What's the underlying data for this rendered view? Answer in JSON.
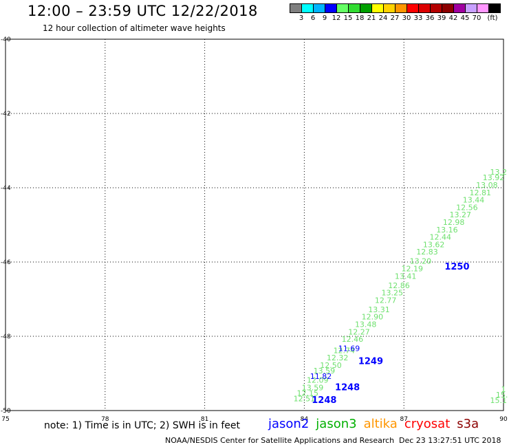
{
  "header": {
    "title": "12:00 – 23:59 UTC 12/22/2018",
    "subtitle": "12 hour collection of altimeter wave heights"
  },
  "color_scale": {
    "colors": [
      "#7f7f7f",
      "#00ffff",
      "#00b4ff",
      "#0000ff",
      "#64ff64",
      "#32dc32",
      "#00a000",
      "#ffff00",
      "#ffd200",
      "#ff9600",
      "#ff0000",
      "#dc0000",
      "#b40000",
      "#8c0000",
      "#a000a0",
      "#c8a0ff",
      "#ff96ff",
      "#000000"
    ],
    "labels": [
      "3",
      "6",
      "9",
      "12",
      "15",
      "18",
      "21",
      "24",
      "27",
      "30",
      "33",
      "36",
      "39",
      "42",
      "45",
      "70"
    ],
    "unit": "(ft)"
  },
  "note": "note: 1) Time is in UTC; 2) SWH is in feet",
  "legend": [
    {
      "name": "jason2",
      "color": "#0000ff"
    },
    {
      "name": "jason3",
      "color": "#00b000"
    },
    {
      "name": "altika",
      "color": "#ff9600"
    },
    {
      "name": "cryosat",
      "color": "#ff0000"
    },
    {
      "name": "s3a",
      "color": "#8c0000"
    }
  ],
  "footer": {
    "credit": "NOAA/NESDIS Center for Satellite Applications and Research",
    "timestamp": "Dec 23 13:27:51 UTC 2018"
  },
  "chart_data": {
    "type": "scatter",
    "x_ticks": [
      75,
      78,
      81,
      84,
      87,
      90
    ],
    "y_ticks": [
      -40,
      -42,
      -44,
      -46,
      -48,
      -50
    ],
    "xlim": [
      75,
      90
    ],
    "ylim": [
      -50,
      -40
    ],
    "grid": true,
    "series": [
      {
        "name": "jason3",
        "color": "#6ee06e",
        "labels": [
          {
            "x": 84.0,
            "y": -49.75,
            "text": "12.51"
          },
          {
            "x": 84.1,
            "y": -49.6,
            "text": "12.15"
          },
          {
            "x": 84.25,
            "y": -49.45,
            "text": "13.59"
          },
          {
            "x": 84.4,
            "y": -49.25,
            "text": "12.09"
          },
          {
            "x": 84.6,
            "y": -49.0,
            "text": "13.59"
          },
          {
            "x": 84.8,
            "y": -48.85,
            "text": "12.50"
          },
          {
            "x": 85.0,
            "y": -48.65,
            "text": "12.32"
          },
          {
            "x": 85.2,
            "y": -48.45,
            "text": "12.74"
          },
          {
            "x": 85.45,
            "y": -48.15,
            "text": "12.46"
          },
          {
            "x": 85.65,
            "y": -47.95,
            "text": "12.27"
          },
          {
            "x": 85.85,
            "y": -47.75,
            "text": "13.48"
          },
          {
            "x": 86.05,
            "y": -47.55,
            "text": "12.90"
          },
          {
            "x": 86.25,
            "y": -47.35,
            "text": "13.31"
          },
          {
            "x": 86.45,
            "y": -47.1,
            "text": "12.77"
          },
          {
            "x": 86.65,
            "y": -46.9,
            "text": "13.25"
          },
          {
            "x": 86.85,
            "y": -46.7,
            "text": "12.86"
          },
          {
            "x": 87.05,
            "y": -46.45,
            "text": "13.41"
          },
          {
            "x": 87.25,
            "y": -46.25,
            "text": "12.19"
          },
          {
            "x": 87.5,
            "y": -46.05,
            "text": "13.20"
          },
          {
            "x": 87.7,
            "y": -45.8,
            "text": "12.83"
          },
          {
            "x": 87.9,
            "y": -45.6,
            "text": "13.62"
          },
          {
            "x": 88.1,
            "y": -45.4,
            "text": "12.44"
          },
          {
            "x": 88.3,
            "y": -45.2,
            "text": "13.16"
          },
          {
            "x": 88.5,
            "y": -45.0,
            "text": "12.98"
          },
          {
            "x": 88.7,
            "y": -44.8,
            "text": "13.27"
          },
          {
            "x": 88.9,
            "y": -44.6,
            "text": "12.56"
          },
          {
            "x": 89.1,
            "y": -44.4,
            "text": "13.44"
          },
          {
            "x": 89.3,
            "y": -44.2,
            "text": "12.81"
          },
          {
            "x": 89.5,
            "y": -44.0,
            "text": "13.08"
          },
          {
            "x": 89.7,
            "y": -43.8,
            "text": "13.92"
          },
          {
            "x": 89.85,
            "y": -43.65,
            "text": "13.2"
          },
          {
            "x": 89.85,
            "y": -49.8,
            "text": "15.1"
          },
          {
            "x": 89.95,
            "y": -49.65,
            "text": "15."
          },
          {
            "x": 90.0,
            "y": -49.5,
            "text": "1"
          }
        ]
      },
      {
        "name": "jason2",
        "color": "#0000ff",
        "labels": [
          {
            "x": 85.35,
            "y": -48.4,
            "text": "11.69"
          },
          {
            "x": 84.5,
            "y": -49.15,
            "text": "11.82"
          }
        ],
        "time_labels": [
          {
            "x": 84.6,
            "y": -49.8,
            "text": "1248"
          },
          {
            "x": 85.3,
            "y": -49.45,
            "text": "1248"
          },
          {
            "x": 86.0,
            "y": -48.75,
            "text": "1249"
          },
          {
            "x": 88.6,
            "y": -46.2,
            "text": "1250"
          }
        ]
      }
    ]
  }
}
